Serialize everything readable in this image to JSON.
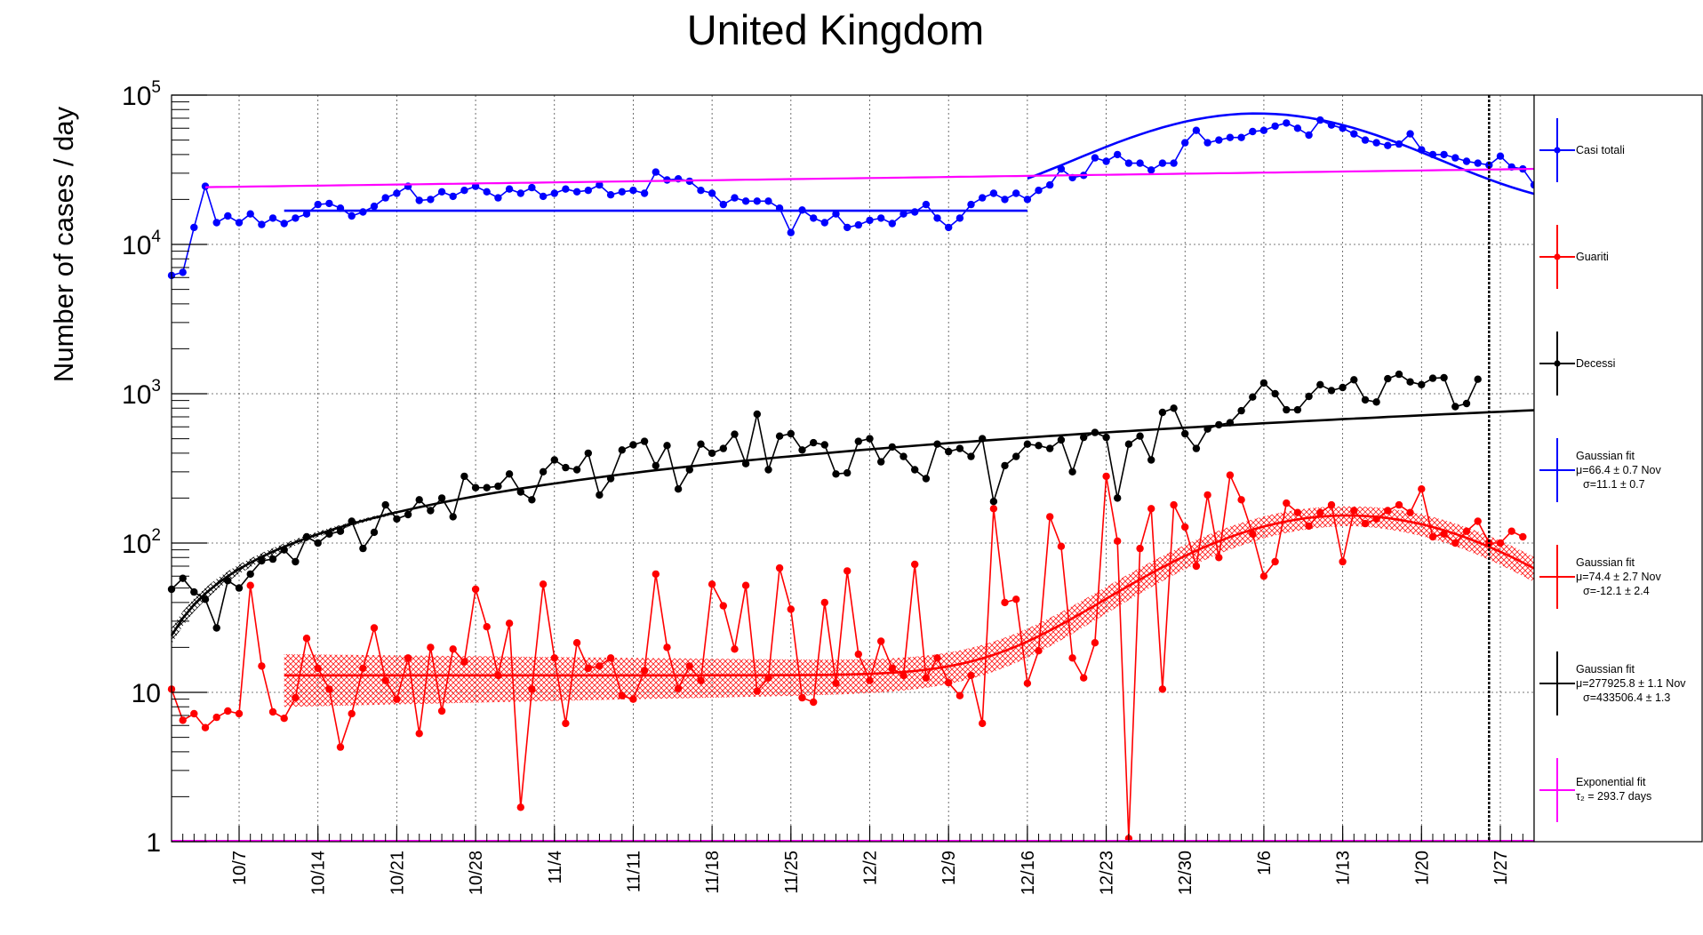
{
  "chart_data": {
    "type": "line",
    "title": "United Kingdom",
    "ylabel": "Number of cases / day",
    "y_scale": "log",
    "ylim": [
      1,
      100000
    ],
    "xlim": [
      "2020-10-01",
      "2021-01-30"
    ],
    "grid": true,
    "legend_position": "right",
    "y_ticks": [
      {
        "base": "10",
        "exp": "5",
        "value": 100000
      },
      {
        "base": "10",
        "exp": "4",
        "value": 10000
      },
      {
        "base": "10",
        "exp": "3",
        "value": 1000
      },
      {
        "base": "10",
        "exp": "2",
        "value": 100
      },
      {
        "base": "10",
        "exp": "",
        "value": 10
      },
      {
        "base": "1",
        "exp": "",
        "value": 1
      }
    ],
    "x_ticks": [
      {
        "label": "10/7",
        "date": "2020-10-07"
      },
      {
        "label": "10/14",
        "date": "2020-10-14"
      },
      {
        "label": "10/21",
        "date": "2020-10-21"
      },
      {
        "label": "10/28",
        "date": "2020-10-28"
      },
      {
        "label": "11/4",
        "date": "2020-11-04"
      },
      {
        "label": "11/11",
        "date": "2020-11-11"
      },
      {
        "label": "11/18",
        "date": "2020-11-18"
      },
      {
        "label": "11/25",
        "date": "2020-11-25"
      },
      {
        "label": "12/2",
        "date": "2020-12-02"
      },
      {
        "label": "12/9",
        "date": "2020-12-09"
      },
      {
        "label": "12/16",
        "date": "2020-12-16"
      },
      {
        "label": "12/23",
        "date": "2020-12-23"
      },
      {
        "label": "12/30",
        "date": "2020-12-30"
      },
      {
        "label": "1/6",
        "date": "2021-01-06"
      },
      {
        "label": "1/13",
        "date": "2021-01-13"
      },
      {
        "label": "1/20",
        "date": "2021-01-20"
      },
      {
        "label": "1/27",
        "date": "2021-01-27"
      }
    ],
    "vertical_marker_date": "2021-01-26",
    "x_start": "2020-10-01",
    "series": [
      {
        "name": "Casi totali",
        "color": "#0000ff",
        "values": [
          6200,
          6500,
          13000,
          24500,
          14000,
          15500,
          14000,
          16000,
          13600,
          15000,
          13800,
          15000,
          16000,
          18500,
          18800,
          17500,
          15500,
          16500,
          18000,
          20500,
          22000,
          24500,
          19700,
          20000,
          22500,
          21000,
          23000,
          24500,
          22500,
          20500,
          23500,
          22000,
          24000,
          21000,
          22000,
          23500,
          22500,
          23000,
          25000,
          21500,
          22500,
          23000,
          22000,
          30500,
          27000,
          27500,
          26500,
          23000,
          22000,
          18500,
          20500,
          19500,
          19500,
          19500,
          17500,
          12000,
          17000,
          15000,
          14000,
          16000,
          13000,
          13500,
          14500,
          15000,
          13800,
          16000,
          16500,
          18500,
          15000,
          13000,
          15000,
          18500,
          20500,
          22000,
          20000,
          22000,
          20000,
          23000,
          25000,
          32000,
          28000,
          29000,
          38000,
          36000,
          40000,
          35000,
          35000,
          31500,
          35000,
          35000,
          48000,
          58000,
          48000,
          50000,
          52000,
          52000,
          57000,
          58000,
          62000,
          65000,
          60000,
          54000,
          68000,
          63000,
          60000,
          55000,
          50000,
          48000,
          46000,
          47000,
          55000,
          43000,
          40000,
          40000,
          38000,
          36000,
          35000,
          34000,
          39000,
          33000,
          32000,
          25000,
          22000
        ],
        "fit": {
          "type": "gaussian",
          "flat_level": 16800,
          "flat_from": 10,
          "flat_to": 76,
          "peak": 58500,
          "mu_day": 96.4,
          "sigma": 11.1,
          "tail_to_day": 120
        }
      },
      {
        "name": "Guariti",
        "color": "#ff0000",
        "values": [
          10.5,
          6.5,
          7.2,
          5.8,
          6.8,
          7.5,
          7.2,
          52,
          15,
          7.4,
          6.7,
          9.2,
          23,
          14.5,
          10.5,
          4.3,
          7.2,
          14.5,
          27,
          12,
          9,
          17,
          5.3,
          20,
          7.5,
          19.5,
          16,
          49,
          27.5,
          13,
          29,
          1.7,
          10.5,
          53,
          17,
          6.2,
          21.5,
          14.5,
          15,
          17,
          9.5,
          9,
          14,
          62,
          20,
          10.6,
          15,
          12,
          53,
          38,
          19.5,
          52,
          10.2,
          12.5,
          68,
          36,
          9.2,
          8.6,
          40,
          11.5,
          65,
          18,
          12,
          22,
          14.5,
          13,
          72,
          12.5,
          17,
          11.6,
          9.5,
          13,
          6.2,
          170,
          40,
          42,
          11.5,
          19,
          150,
          95,
          17,
          12.5,
          21.5,
          280,
          103,
          1.05,
          92,
          170,
          10.5,
          180,
          128,
          70,
          210,
          80,
          285,
          195,
          115,
          60,
          75,
          185,
          160,
          130,
          160,
          180,
          75,
          165,
          135,
          145,
          165,
          180,
          160,
          230,
          110,
          115,
          100,
          120,
          140,
          100,
          100,
          120,
          110
        ],
        "fit": {
          "type": "gaussian",
          "baseline": 13,
          "peak": 140,
          "mu_day": 104.4,
          "sigma": 12.1,
          "band_rel": 0.15
        }
      },
      {
        "name": "Decessi",
        "color": "#000000",
        "values": [
          49,
          58,
          47,
          42,
          27,
          56,
          50,
          62,
          76,
          78,
          90,
          75,
          110,
          100,
          115,
          120,
          140,
          92,
          118,
          180,
          145,
          155,
          195,
          165,
          200,
          150,
          280,
          235,
          235,
          240,
          290,
          220,
          195,
          300,
          360,
          320,
          310,
          400,
          210,
          270,
          420,
          455,
          480,
          330,
          450,
          230,
          310,
          460,
          400,
          430,
          535,
          340,
          730,
          310,
          520,
          540,
          420,
          470,
          455,
          290,
          295,
          480,
          500,
          350,
          440,
          380,
          310,
          270,
          460,
          410,
          430,
          380,
          500,
          190,
          330,
          380,
          460,
          450,
          430,
          490,
          300,
          510,
          550,
          510,
          200,
          460,
          520,
          360,
          750,
          800,
          540,
          430,
          580,
          620,
          640,
          770,
          950,
          1180,
          1000,
          780,
          780,
          960,
          1150,
          1050,
          1100,
          1240,
          910,
          880,
          1260,
          1350,
          1200,
          1150,
          1270,
          1280,
          820,
          860,
          1250
        ],
        "fit": {
          "type": "saturating",
          "start": 24,
          "end": 810
        }
      }
    ],
    "exponential_fit": {
      "name": "Exponential fit",
      "color": "#ff00ff",
      "start_value": 24000,
      "end_value": 32500,
      "tau_days": 293.7
    },
    "legend": [
      {
        "label": "Casi totali",
        "color": "#0000ff",
        "marker": true
      },
      {
        "label": "Guariti",
        "color": "#ff0000",
        "marker": true
      },
      {
        "label": "Decessi",
        "color": "#000000",
        "marker": true
      },
      {
        "label": "Gaussian fit",
        "color": "#0000ff",
        "marker": false,
        "line2": "μ=66.4 ± 0.7 Nov",
        "line3": "σ=11.1 ± 0.7"
      },
      {
        "label": "Gaussian fit",
        "color": "#ff0000",
        "marker": false,
        "line2": "μ=74.4 ± 2.7 Nov",
        "line3": "σ=-12.1 ± 2.4"
      },
      {
        "label": "Gaussian fit",
        "color": "#000000",
        "marker": false,
        "line2": "μ=277925.8 ± 1.1 Nov",
        "line3": "σ=433506.4 ± 1.3"
      },
      {
        "label": "Exponential fit",
        "color": "#ff00ff",
        "marker": false,
        "line2": "τ₂ = 293.7 days",
        "line3": ""
      }
    ]
  }
}
